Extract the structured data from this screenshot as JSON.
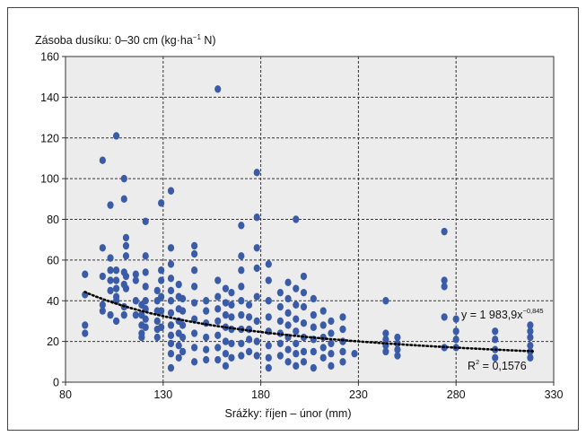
{
  "chart_data": {
    "type": "scatter",
    "title": "",
    "ylabel": {
      "prefix": "Zásoba dusíku: 0–30 cm (kg·ha",
      "sup": "−1",
      "suffix": " N)"
    },
    "xlabel": "Srážky: říjen – únor (mm)",
    "xlim": [
      80,
      330
    ],
    "ylim": [
      0,
      160
    ],
    "xticks": [
      80,
      130,
      180,
      230,
      280,
      330
    ],
    "yticks": [
      0,
      20,
      40,
      60,
      80,
      100,
      120,
      140,
      160
    ],
    "grid": true,
    "colors": {
      "points": "#3a5ba8",
      "trend": "#000000",
      "plot_bg": "#ececec"
    },
    "trendline": {
      "type": "power",
      "a": 1983.9,
      "b": -0.845,
      "x_from": 90,
      "x_to": 320,
      "style": "dotted"
    },
    "annotations": {
      "equation": {
        "main": "y = 1 983,9x",
        "sup": "−0,845"
      },
      "r2": {
        "main": "R",
        "sup": "2",
        "suffix": " = 0,1576"
      }
    },
    "points": [
      [
        90,
        53
      ],
      [
        90,
        43
      ],
      [
        90,
        28
      ],
      [
        90,
        24
      ],
      [
        99,
        109
      ],
      [
        99,
        66
      ],
      [
        99,
        52
      ],
      [
        99,
        38
      ],
      [
        99,
        35
      ],
      [
        103,
        87
      ],
      [
        103,
        61
      ],
      [
        103,
        55
      ],
      [
        103,
        50
      ],
      [
        103,
        45
      ],
      [
        103,
        33
      ],
      [
        106,
        121
      ],
      [
        106,
        55
      ],
      [
        106,
        50
      ],
      [
        106,
        46
      ],
      [
        106,
        42
      ],
      [
        106,
        40
      ],
      [
        106,
        30
      ],
      [
        110,
        100
      ],
      [
        110,
        90
      ],
      [
        110,
        54
      ],
      [
        110,
        48
      ],
      [
        110,
        37
      ],
      [
        110,
        33
      ],
      [
        111,
        71
      ],
      [
        111,
        67
      ],
      [
        111,
        62
      ],
      [
        111,
        52
      ],
      [
        111,
        46
      ],
      [
        116,
        53
      ],
      [
        116,
        50
      ],
      [
        116,
        40
      ],
      [
        116,
        33
      ],
      [
        119,
        38
      ],
      [
        119,
        33
      ],
      [
        119,
        28
      ],
      [
        119,
        24
      ],
      [
        119,
        22
      ],
      [
        121,
        79
      ],
      [
        121,
        62
      ],
      [
        121,
        54
      ],
      [
        121,
        47
      ],
      [
        121,
        40
      ],
      [
        121,
        36
      ],
      [
        121,
        31
      ],
      [
        121,
        27
      ],
      [
        127,
        45
      ],
      [
        127,
        40
      ],
      [
        127,
        35
      ],
      [
        127,
        30
      ],
      [
        127,
        26
      ],
      [
        127,
        22
      ],
      [
        129,
        88
      ],
      [
        129,
        55
      ],
      [
        129,
        50
      ],
      [
        129,
        42
      ],
      [
        129,
        35
      ],
      [
        129,
        27
      ],
      [
        134,
        94
      ],
      [
        134,
        66
      ],
      [
        134,
        58
      ],
      [
        134,
        51
      ],
      [
        134,
        45
      ],
      [
        134,
        40
      ],
      [
        134,
        34
      ],
      [
        134,
        28
      ],
      [
        134,
        23
      ],
      [
        134,
        19
      ],
      [
        134,
        14
      ],
      [
        134,
        7
      ],
      [
        138,
        48
      ],
      [
        138,
        42
      ],
      [
        138,
        36
      ],
      [
        138,
        30
      ],
      [
        138,
        24
      ],
      [
        138,
        18
      ],
      [
        138,
        12
      ],
      [
        140,
        41
      ],
      [
        140,
        35
      ],
      [
        140,
        28
      ],
      [
        140,
        22
      ],
      [
        140,
        15
      ],
      [
        146,
        67
      ],
      [
        146,
        63
      ],
      [
        146,
        55
      ],
      [
        146,
        47
      ],
      [
        146,
        39
      ],
      [
        146,
        31
      ],
      [
        146,
        24
      ],
      [
        146,
        17
      ],
      [
        146,
        10
      ],
      [
        152,
        40
      ],
      [
        152,
        35
      ],
      [
        152,
        29
      ],
      [
        152,
        22
      ],
      [
        152,
        16
      ],
      [
        152,
        11
      ],
      [
        158,
        144
      ],
      [
        158,
        50
      ],
      [
        158,
        42
      ],
      [
        158,
        36
      ],
      [
        158,
        30
      ],
      [
        158,
        23
      ],
      [
        158,
        17
      ],
      [
        158,
        11
      ],
      [
        162,
        46
      ],
      [
        162,
        39
      ],
      [
        162,
        33
      ],
      [
        162,
        27
      ],
      [
        162,
        20
      ],
      [
        162,
        14
      ],
      [
        162,
        8
      ],
      [
        165,
        44
      ],
      [
        165,
        38
      ],
      [
        165,
        32
      ],
      [
        165,
        26
      ],
      [
        165,
        19
      ],
      [
        165,
        12
      ],
      [
        170,
        77
      ],
      [
        170,
        62
      ],
      [
        170,
        55
      ],
      [
        170,
        47
      ],
      [
        170,
        40
      ],
      [
        170,
        33
      ],
      [
        170,
        26
      ],
      [
        170,
        19
      ],
      [
        170,
        13
      ],
      [
        174,
        38
      ],
      [
        174,
        32
      ],
      [
        174,
        26
      ],
      [
        174,
        21
      ],
      [
        174,
        15
      ],
      [
        178,
        103
      ],
      [
        178,
        81
      ],
      [
        178,
        66
      ],
      [
        178,
        56
      ],
      [
        178,
        42
      ],
      [
        178,
        30
      ],
      [
        178,
        20
      ],
      [
        178,
        13
      ],
      [
        184,
        58
      ],
      [
        184,
        50
      ],
      [
        184,
        40
      ],
      [
        184,
        32
      ],
      [
        184,
        25
      ],
      [
        184,
        18
      ],
      [
        184,
        12
      ],
      [
        184,
        7
      ],
      [
        190,
        44
      ],
      [
        190,
        37
      ],
      [
        190,
        30
      ],
      [
        190,
        24
      ],
      [
        190,
        19
      ],
      [
        190,
        13
      ],
      [
        194,
        49
      ],
      [
        194,
        41
      ],
      [
        194,
        34
      ],
      [
        194,
        28
      ],
      [
        194,
        22
      ],
      [
        194,
        16
      ],
      [
        194,
        10
      ],
      [
        198,
        80
      ],
      [
        198,
        46
      ],
      [
        198,
        38
      ],
      [
        198,
        31
      ],
      [
        198,
        25
      ],
      [
        198,
        19
      ],
      [
        198,
        14
      ],
      [
        198,
        8
      ],
      [
        202,
        52
      ],
      [
        202,
        44
      ],
      [
        202,
        37
      ],
      [
        202,
        29
      ],
      [
        202,
        22
      ],
      [
        202,
        15
      ],
      [
        202,
        10
      ],
      [
        207,
        41
      ],
      [
        207,
        33
      ],
      [
        207,
        27
      ],
      [
        207,
        21
      ],
      [
        207,
        15
      ],
      [
        207,
        7
      ],
      [
        212,
        35
      ],
      [
        212,
        28
      ],
      [
        212,
        22
      ],
      [
        212,
        17
      ],
      [
        212,
        12
      ],
      [
        216,
        30
      ],
      [
        216,
        24
      ],
      [
        216,
        19
      ],
      [
        216,
        14
      ],
      [
        216,
        8
      ],
      [
        222,
        32
      ],
      [
        222,
        26
      ],
      [
        222,
        20
      ],
      [
        222,
        15
      ],
      [
        222,
        10
      ],
      [
        228,
        14
      ],
      [
        244,
        40
      ],
      [
        244,
        24
      ],
      [
        244,
        21
      ],
      [
        244,
        18
      ],
      [
        244,
        15
      ],
      [
        250,
        22
      ],
      [
        250,
        19
      ],
      [
        250,
        16
      ],
      [
        250,
        13
      ],
      [
        274,
        74
      ],
      [
        274,
        50
      ],
      [
        274,
        47
      ],
      [
        274,
        32
      ],
      [
        274,
        17
      ],
      [
        280,
        31
      ],
      [
        280,
        25
      ],
      [
        280,
        21
      ],
      [
        280,
        17
      ],
      [
        300,
        25
      ],
      [
        300,
        21
      ],
      [
        300,
        16
      ],
      [
        300,
        12
      ],
      [
        318,
        28
      ],
      [
        318,
        25
      ],
      [
        318,
        22
      ],
      [
        318,
        18
      ],
      [
        318,
        15
      ],
      [
        318,
        12
      ]
    ]
  }
}
